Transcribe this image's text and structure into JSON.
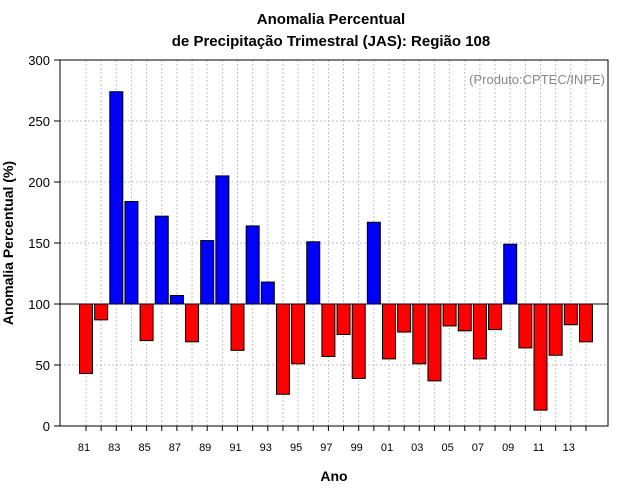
{
  "chart_data": {
    "type": "bar",
    "title_line1": "Anomalia Percentual",
    "title_line2": "de Precipitação Trimestral (JAS): Região 108",
    "xlabel": "Ano",
    "ylabel": "Anomalia Percentual (%)",
    "credit": "(Produto:CPTEC/INPE)",
    "ylim": [
      0,
      300
    ],
    "baseline": 100,
    "yticks": [
      0,
      50,
      100,
      150,
      200,
      250,
      300
    ],
    "tick_labels": [
      "81",
      "83",
      "85",
      "87",
      "89",
      "91",
      "93",
      "95",
      "97",
      "99",
      "01",
      "03",
      "05",
      "07",
      "09",
      "11",
      "13"
    ],
    "categories": [
      "1981",
      "1982",
      "1983",
      "1984",
      "1985",
      "1986",
      "1987",
      "1988",
      "1989",
      "1990",
      "1991",
      "1992",
      "1993",
      "1994",
      "1995",
      "1996",
      "1997",
      "1998",
      "1999",
      "2000",
      "2001",
      "2002",
      "2003",
      "2004",
      "2005",
      "2006",
      "2007",
      "2008",
      "2009",
      "2010",
      "2011",
      "2012",
      "2013",
      "2014"
    ],
    "values": [
      43,
      87,
      274,
      184,
      70,
      172,
      107,
      69,
      152,
      205,
      62,
      164,
      118,
      26,
      51,
      151,
      57,
      75,
      39,
      167,
      55,
      77,
      51,
      37,
      82,
      78,
      55,
      79,
      149,
      64,
      13,
      58,
      83,
      69
    ],
    "colors": {
      "above": "#0000ff",
      "below": "#ff0000",
      "grid": "#c0c0c0"
    }
  }
}
